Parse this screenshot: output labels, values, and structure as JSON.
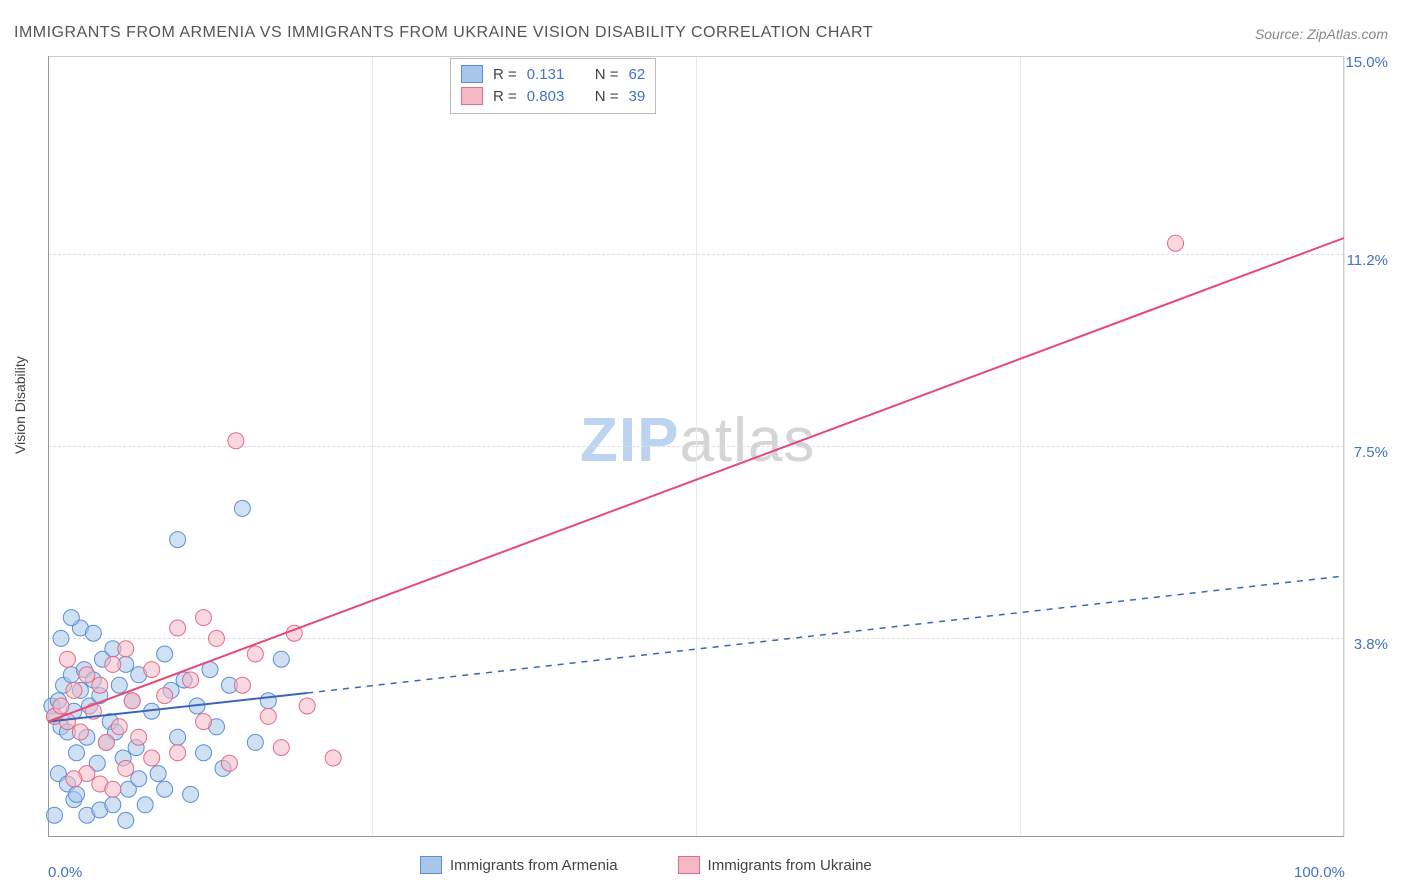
{
  "chart": {
    "type": "scatter",
    "title": "IMMIGRANTS FROM ARMENIA VS IMMIGRANTS FROM UKRAINE VISION DISABILITY CORRELATION CHART",
    "source_label": "Source: ZipAtlas.com",
    "watermark": {
      "prefix": "ZIP",
      "suffix": "atlas"
    },
    "y_axis_title": "Vision Disability",
    "xlim": [
      0,
      100
    ],
    "ylim": [
      0,
      15
    ],
    "x_ticks": [
      0,
      100
    ],
    "x_tick_labels": [
      "0.0%",
      "100.0%"
    ],
    "y_ticks": [
      3.8,
      7.5,
      11.2,
      15.0
    ],
    "y_tick_labels": [
      "3.8%",
      "7.5%",
      "11.2%",
      "15.0%"
    ],
    "x_grid_ticks": [
      25,
      50,
      75,
      100
    ],
    "background_color": "#ffffff",
    "grid_color": "#dddddd",
    "series": [
      {
        "name": "Immigrants from Armenia",
        "color_fill": "#a8c6ea",
        "color_stroke": "#5b8fd6",
        "R": "0.131",
        "N": "62",
        "marker_radius": 8,
        "marker_opacity": 0.55,
        "trend": {
          "x1": 0,
          "y1": 2.2,
          "x2": 20,
          "y2": 2.75,
          "dash_x2": 100,
          "dash_y2": 5.0,
          "color": "#3a67b5",
          "width": 2
        },
        "points": [
          [
            0.3,
            2.5
          ],
          [
            0.5,
            2.3
          ],
          [
            0.8,
            2.6
          ],
          [
            1.0,
            2.1
          ],
          [
            1.2,
            2.9
          ],
          [
            1.5,
            2.0
          ],
          [
            1.8,
            3.1
          ],
          [
            2.0,
            2.4
          ],
          [
            2.2,
            1.6
          ],
          [
            2.5,
            2.8
          ],
          [
            2.8,
            3.2
          ],
          [
            3.0,
            1.9
          ],
          [
            3.2,
            2.5
          ],
          [
            3.5,
            3.0
          ],
          [
            3.8,
            1.4
          ],
          [
            4.0,
            2.7
          ],
          [
            4.2,
            3.4
          ],
          [
            4.5,
            1.8
          ],
          [
            4.8,
            2.2
          ],
          [
            5.0,
            3.6
          ],
          [
            5.2,
            2.0
          ],
          [
            5.5,
            2.9
          ],
          [
            5.8,
            1.5
          ],
          [
            6.0,
            3.3
          ],
          [
            6.2,
            0.9
          ],
          [
            6.5,
            2.6
          ],
          [
            6.8,
            1.7
          ],
          [
            7.0,
            3.1
          ],
          [
            7.5,
            0.6
          ],
          [
            8.0,
            2.4
          ],
          [
            8.5,
            1.2
          ],
          [
            9.0,
            3.5
          ],
          [
            9.5,
            2.8
          ],
          [
            10.0,
            1.9
          ],
          [
            10.5,
            3.0
          ],
          [
            11.0,
            0.8
          ],
          [
            11.5,
            2.5
          ],
          [
            12.0,
            1.6
          ],
          [
            12.5,
            3.2
          ],
          [
            13.0,
            2.1
          ],
          [
            13.5,
            1.3
          ],
          [
            14.0,
            2.9
          ],
          [
            15.0,
            6.3
          ],
          [
            16.0,
            1.8
          ],
          [
            17.0,
            2.6
          ],
          [
            18.0,
            3.4
          ],
          [
            10.0,
            5.7
          ],
          [
            3.0,
            0.4
          ],
          [
            2.0,
            0.7
          ],
          [
            4.0,
            0.5
          ],
          [
            6.0,
            0.3
          ],
          [
            1.0,
            3.8
          ],
          [
            2.5,
            4.0
          ],
          [
            3.5,
            3.9
          ],
          [
            0.8,
            1.2
          ],
          [
            1.5,
            1.0
          ],
          [
            2.2,
            0.8
          ],
          [
            5.0,
            0.6
          ],
          [
            7.0,
            1.1
          ],
          [
            9.0,
            0.9
          ],
          [
            1.8,
            4.2
          ],
          [
            0.5,
            0.4
          ]
        ]
      },
      {
        "name": "Immigrants from Ukraine",
        "color_fill": "#f4b8c5",
        "color_stroke": "#e56b8a",
        "R": "0.803",
        "N": "39",
        "marker_radius": 8,
        "marker_opacity": 0.55,
        "trend": {
          "x1": 0,
          "y1": 2.2,
          "x2": 100,
          "y2": 11.5,
          "color": "#e64a78",
          "width": 2
        },
        "points": [
          [
            0.5,
            2.3
          ],
          [
            1.0,
            2.5
          ],
          [
            1.5,
            2.2
          ],
          [
            2.0,
            2.8
          ],
          [
            2.5,
            2.0
          ],
          [
            3.0,
            3.1
          ],
          [
            3.5,
            2.4
          ],
          [
            4.0,
            2.9
          ],
          [
            4.5,
            1.8
          ],
          [
            5.0,
            3.3
          ],
          [
            5.5,
            2.1
          ],
          [
            6.0,
            3.6
          ],
          [
            6.5,
            2.6
          ],
          [
            7.0,
            1.9
          ],
          [
            8.0,
            3.2
          ],
          [
            9.0,
            2.7
          ],
          [
            10.0,
            1.6
          ],
          [
            11.0,
            3.0
          ],
          [
            12.0,
            2.2
          ],
          [
            13.0,
            3.8
          ],
          [
            14.0,
            1.4
          ],
          [
            15.0,
            2.9
          ],
          [
            16.0,
            3.5
          ],
          [
            17.0,
            2.3
          ],
          [
            18.0,
            1.7
          ],
          [
            19.0,
            3.9
          ],
          [
            20.0,
            2.5
          ],
          [
            22.0,
            1.5
          ],
          [
            14.5,
            7.6
          ],
          [
            87.0,
            11.4
          ],
          [
            3.0,
            1.2
          ],
          [
            4.0,
            1.0
          ],
          [
            6.0,
            1.3
          ],
          [
            8.0,
            1.5
          ],
          [
            10.0,
            4.0
          ],
          [
            12.0,
            4.2
          ],
          [
            2.0,
            1.1
          ],
          [
            5.0,
            0.9
          ],
          [
            1.5,
            3.4
          ]
        ]
      }
    ]
  }
}
